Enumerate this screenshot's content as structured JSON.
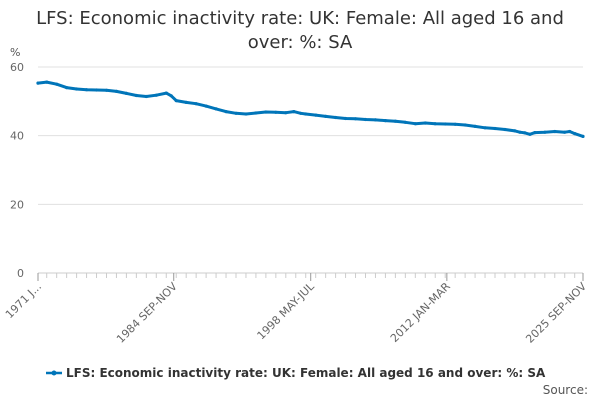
{
  "chart_data": {
    "type": "line",
    "title_lines": [
      "LFS: Economic inactivity rate: UK: Female: All aged 16 and",
      "over: %: SA"
    ],
    "ylabel": "%",
    "ylim": [
      0,
      60
    ],
    "yticks": [
      0,
      20,
      40,
      60
    ],
    "xlim": [
      1971.125,
      2025.8333
    ],
    "xticks": [
      {
        "label": "1971 J...",
        "x": 1971.125
      },
      {
        "label": "1984 SEP-NOV",
        "x": 1984.75
      },
      {
        "label": "1998 MAY-JUL",
        "x": 1998.5
      },
      {
        "label": "2012 JAN-MAR",
        "x": 2012.1667
      },
      {
        "label": "2025 SEP-NOV",
        "x": 2025.8333
      }
    ],
    "grid": true,
    "series": [
      {
        "name": "LFS: Economic inactivity rate: UK: Female: All aged 16 and over: %: SA",
        "color": "#0075b9",
        "points": [
          [
            1971.125,
            55.3
          ],
          [
            1972.0,
            55.6
          ],
          [
            1973.0,
            55.0
          ],
          [
            1974.0,
            54.0
          ],
          [
            1975.0,
            53.6
          ],
          [
            1976.0,
            53.4
          ],
          [
            1977.0,
            53.3
          ],
          [
            1978.0,
            53.2
          ],
          [
            1979.0,
            52.9
          ],
          [
            1980.0,
            52.3
          ],
          [
            1981.0,
            51.7
          ],
          [
            1982.0,
            51.4
          ],
          [
            1983.0,
            51.8
          ],
          [
            1984.0,
            52.4
          ],
          [
            1984.5,
            51.6
          ],
          [
            1985.0,
            50.2
          ],
          [
            1986.0,
            49.7
          ],
          [
            1987.0,
            49.3
          ],
          [
            1988.0,
            48.6
          ],
          [
            1989.0,
            47.8
          ],
          [
            1990.0,
            47.0
          ],
          [
            1991.0,
            46.5
          ],
          [
            1992.0,
            46.3
          ],
          [
            1993.0,
            46.6
          ],
          [
            1994.0,
            46.9
          ],
          [
            1995.0,
            46.8
          ],
          [
            1996.0,
            46.7
          ],
          [
            1996.8,
            47.0
          ],
          [
            1997.5,
            46.5
          ],
          [
            1998.0,
            46.3
          ],
          [
            1999.0,
            46.0
          ],
          [
            2000.0,
            45.6
          ],
          [
            2001.0,
            45.3
          ],
          [
            2002.0,
            45.0
          ],
          [
            2003.0,
            44.9
          ],
          [
            2004.0,
            44.7
          ],
          [
            2005.0,
            44.6
          ],
          [
            2006.0,
            44.4
          ],
          [
            2007.0,
            44.2
          ],
          [
            2008.0,
            43.9
          ],
          [
            2009.0,
            43.5
          ],
          [
            2010.0,
            43.7
          ],
          [
            2011.0,
            43.5
          ],
          [
            2012.0,
            43.4
          ],
          [
            2013.0,
            43.3
          ],
          [
            2014.0,
            43.1
          ],
          [
            2015.0,
            42.7
          ],
          [
            2016.0,
            42.3
          ],
          [
            2017.0,
            42.1
          ],
          [
            2018.0,
            41.8
          ],
          [
            2019.0,
            41.4
          ],
          [
            2019.5,
            41.0
          ],
          [
            2020.0,
            40.8
          ],
          [
            2020.5,
            40.4
          ],
          [
            2021.0,
            40.9
          ],
          [
            2022.0,
            41.0
          ],
          [
            2023.0,
            41.2
          ],
          [
            2024.0,
            41.0
          ],
          [
            2024.5,
            41.2
          ],
          [
            2025.0,
            40.6
          ],
          [
            2025.8333,
            39.8
          ]
        ]
      }
    ],
    "legend_label": "LFS: Economic inactivity rate: UK: Female: All aged 16 and over: %: SA",
    "source_label": "Source:"
  }
}
